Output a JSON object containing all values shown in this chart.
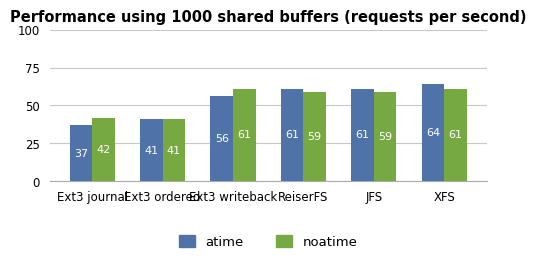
{
  "title": "Performance using 1000 shared buffers (requests per second)",
  "categories": [
    "Ext3 journal",
    "Ext3 ordered",
    "Ext3 writeback",
    "ReiserFS",
    "JFS",
    "XFS"
  ],
  "atime": [
    37,
    41,
    56,
    61,
    61,
    64
  ],
  "noatime": [
    42,
    41,
    61,
    59,
    59,
    61
  ],
  "atime_color": "#4f72a8",
  "noatime_color": "#77a942",
  "bar_label_color": "white",
  "ylim": [
    0,
    100
  ],
  "yticks": [
    0,
    25,
    50,
    75,
    100
  ],
  "legend_labels": [
    "atime",
    "noatime"
  ],
  "bar_width": 0.32,
  "title_fontsize": 10.5,
  "tick_fontsize": 8.5,
  "label_fontsize": 8,
  "legend_fontsize": 9.5,
  "background_color": "#ffffff",
  "grid_color": "#c8c8c8"
}
